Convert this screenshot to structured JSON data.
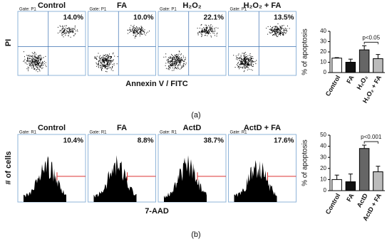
{
  "figure": {
    "a": {
      "panels": [
        {
          "title": "Control",
          "gate": "Gate: P1",
          "percent": "14.0%"
        },
        {
          "title": "FA",
          "gate": "Gate: P1",
          "percent": "10.0%"
        },
        {
          "title": "H₂O₂",
          "gate": "Gate: P1",
          "percent": "22.1%"
        },
        {
          "title": "H₂O₂ + FA",
          "gate": "Gate: P1",
          "percent": "13.5%"
        }
      ],
      "y_label": "PI",
      "x_label": "Annexin V / FITC",
      "caption": "(a)"
    },
    "b": {
      "panels": [
        {
          "title": "Control",
          "gate": "Gate: R1",
          "percent": "10.4%"
        },
        {
          "title": "FA",
          "gate": "Gate: R1",
          "percent": "8.8%"
        },
        {
          "title": "ActD",
          "gate": "Gate: R1",
          "percent": "38.7%"
        },
        {
          "title": "ActD + FA",
          "gate": "Gate: R1",
          "percent": "17.6%"
        }
      ],
      "y_label": "# of cells",
      "x_label": "7-AAD",
      "caption": "(b)"
    }
  },
  "chart_data": [
    {
      "type": "bar",
      "y_label": "% of apoptosis",
      "categories": [
        "Control",
        "FA",
        "H₂O₂",
        "H₂O₂ + FA"
      ],
      "values": [
        14,
        10,
        22,
        13.5
      ],
      "errors": [
        0.5,
        3,
        4,
        4
      ],
      "colors": [
        "#ffffff",
        "#111111",
        "#666666",
        "#bbbbbb"
      ],
      "ylim": [
        0,
        40
      ],
      "yticks": [
        0,
        10,
        20,
        30,
        40
      ],
      "annotation": "p<0.05"
    },
    {
      "type": "bar",
      "y_label": "% of apoptosis",
      "categories": [
        "Control",
        "FA",
        "ActD",
        "ActD + FA"
      ],
      "values": [
        10,
        8,
        38,
        17
      ],
      "errors": [
        4,
        7,
        3,
        5
      ],
      "colors": [
        "#ffffff",
        "#111111",
        "#666666",
        "#bbbbbb"
      ],
      "ylim": [
        0,
        50
      ],
      "yticks": [
        0,
        10,
        20,
        30,
        40,
        50
      ],
      "annotation": "p<0.001"
    }
  ]
}
